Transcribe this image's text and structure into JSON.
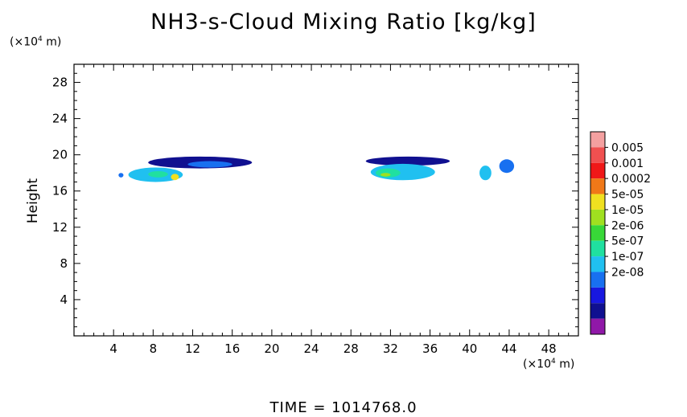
{
  "chart_data": {
    "type": "heatmap",
    "title": "NH3-s-Cloud Mixing Ratio [kg/kg]",
    "ylabel": "Height",
    "y_unit": {
      "prefix": "(×10",
      "exp": "4",
      "suffix": " m)"
    },
    "x_unit": {
      "prefix": "(×10",
      "exp": "4",
      "suffix": " m)"
    },
    "footer": "TIME = 1014768.0",
    "xlim": [
      0,
      51
    ],
    "ylim": [
      0,
      30
    ],
    "x_ticks": [
      "4",
      "8",
      "12",
      "16",
      "20",
      "24",
      "28",
      "32",
      "36",
      "40",
      "44",
      "48"
    ],
    "y_ticks": [
      "4",
      "8",
      "12",
      "16",
      "20",
      "24",
      "28"
    ],
    "colorbar": {
      "labels": [
        "0.005",
        "0.001",
        "0.0002",
        "5e-05",
        "1e-05",
        "2e-06",
        "5e-07",
        "1e-07",
        "2e-08"
      ],
      "colors": [
        "#f4a0a0",
        "#f05050",
        "#f01818",
        "#f07818",
        "#f0e020",
        "#a0e020",
        "#38d838",
        "#20e0a0",
        "#20c0f0",
        "#1870f0",
        "#1818e0",
        "#101090",
        "#9018a8"
      ]
    },
    "regions": [
      {
        "x": [
          5.5,
          11.0
        ],
        "y": [
          17.0,
          18.6
        ],
        "level": 8
      },
      {
        "x": [
          7.5,
          9.5
        ],
        "y": [
          17.5,
          18.2
        ],
        "level": 7
      },
      {
        "x": [
          9.8,
          10.6
        ],
        "y": [
          17.2,
          17.9
        ],
        "level": 4
      },
      {
        "x": [
          7.5,
          18.0
        ],
        "y": [
          18.5,
          19.8
        ],
        "level": 11
      },
      {
        "x": [
          11.5,
          16.0
        ],
        "y": [
          18.6,
          19.3
        ],
        "level": 9
      },
      {
        "x": [
          4.5,
          5.0
        ],
        "y": [
          17.5,
          18.0
        ],
        "level": 9
      },
      {
        "x": [
          29.5,
          38.0
        ],
        "y": [
          18.8,
          19.8
        ],
        "level": 11
      },
      {
        "x": [
          30.0,
          36.5
        ],
        "y": [
          17.2,
          19.0
        ],
        "level": 8
      },
      {
        "x": [
          30.5,
          33.0
        ],
        "y": [
          17.5,
          18.5
        ],
        "level": 7
      },
      {
        "x": [
          31.0,
          32.0
        ],
        "y": [
          17.6,
          18.0
        ],
        "level": 5
      },
      {
        "x": [
          41.0,
          42.2
        ],
        "y": [
          17.2,
          18.8
        ],
        "level": 8
      },
      {
        "x": [
          43.0,
          44.5
        ],
        "y": [
          18.0,
          19.5
        ],
        "level": 9
      }
    ]
  }
}
